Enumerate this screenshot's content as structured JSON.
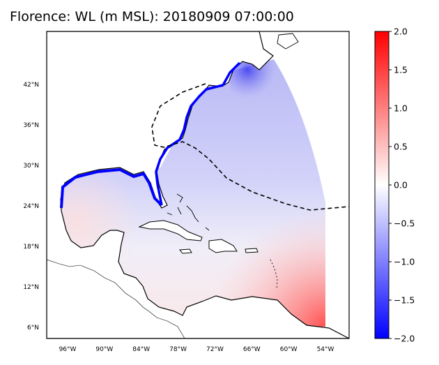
{
  "title": "Florence: WL (m MSL): 20180909 07:00:00",
  "chart_data": {
    "type": "heatmap",
    "title": "Florence: WL (m MSL): 20180909 07:00:00",
    "variable": "WL (m MSL)",
    "lon_ticks": [
      "96°W",
      "90°W",
      "84°W",
      "78°W",
      "72°W",
      "66°W",
      "60°W",
      "54°W"
    ],
    "lat_ticks": [
      "42°N",
      "36°N",
      "30°N",
      "24°N",
      "18°N",
      "12°N",
      "6°N"
    ],
    "lon_values": [
      -96,
      -90,
      -84,
      -78,
      -72,
      -66,
      -60,
      -54
    ],
    "lat_values": [
      42,
      36,
      30,
      24,
      18,
      12,
      6
    ],
    "colorbar": {
      "ticks": [
        "2.0",
        "1.5",
        "1.0",
        "0.5",
        "0.0",
        "−0.5",
        "−1.0",
        "−1.5",
        "−2.0"
      ],
      "values": [
        2.0,
        1.5,
        1.0,
        0.5,
        0.0,
        -0.5,
        -1.0,
        -1.5,
        -2.0
      ],
      "vmin": -2.0,
      "vmax": 2.0,
      "colormap": "bwr",
      "low_color": "#0000ff",
      "mid_color": "#ffffff",
      "high_color": "#ff0000"
    },
    "grid": false
  }
}
